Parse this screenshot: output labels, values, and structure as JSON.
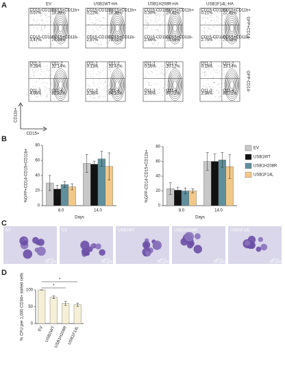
{
  "panel_letters": [
    "A",
    "B",
    "C",
    "D"
  ],
  "flow": {
    "columns": [
      "EV",
      "USB1WT-HA",
      "USB1H208R-HA",
      "USB1F14L-HA"
    ],
    "rows": [
      "GFP+CD14-",
      "GFP-CD14-"
    ],
    "y_axis": "CD11b+",
    "x_axis": "CD15+",
    "plots": [
      [
        [
          {
            "gate": "CD15-CD11b+",
            "pct": "0.07%"
          },
          {
            "gate": "CD15+CD11b+",
            "pct": "18.99%"
          },
          {
            "gate": "CD15-CD11b-",
            "pct": "3.47%"
          },
          {
            "gate": "CD15+CD11b-",
            "pct": "76.94%"
          }
        ],
        [
          {
            "gate": "CD15-CD11b+",
            "pct": "0.22%"
          },
          {
            "gate": "CD15+CD11b+",
            "pct": "18.38%"
          },
          {
            "gate": "CD15-CD11b-",
            "pct": "2.87%"
          },
          {
            "gate": "CD15+CD11b-",
            "pct": "78.51%"
          }
        ],
        [
          {
            "gate": "CD15-CD11b+",
            "pct": "0.30%"
          },
          {
            "gate": "CD15+CD11b+",
            "pct": "29.42%"
          },
          {
            "gate": "CD15-CD11b-",
            "pct": "2.66%"
          },
          {
            "gate": "CD15+CD11b-",
            "pct": "70.56%"
          }
        ],
        [
          {
            "gate": "CD15-CD11b+",
            "pct": "0.21%"
          },
          {
            "gate": "CD15+CD11b+",
            "pct": "22.45%"
          },
          {
            "gate": "CD15-CD11b-",
            "pct": "2.75%"
          },
          {
            "gate": "CD15+CD11b-",
            "pct": "74.58%"
          }
        ]
      ],
      [
        [
          {
            "gate": "Q11-1",
            "pct": "0.28%"
          },
          {
            "gate": "Q11-2",
            "pct": "12.14%"
          },
          {
            "gate": "Q11-3",
            "pct": "4.96%"
          },
          {
            "gate": "Q11-4",
            "pct": "82.62%"
          }
        ],
        [
          {
            "gate": "Q11-1",
            "pct": "0.13%"
          },
          {
            "gate": "Q11-2",
            "pct": "13.41%"
          },
          {
            "gate": "Q11-3",
            "pct": "2.36%"
          },
          {
            "gate": "Q11-4",
            "pct": "84.10%"
          }
        ],
        [
          {
            "gate": "Q11-1",
            "pct": "0.16%"
          },
          {
            "gate": "Q11-2",
            "pct": "10.12%"
          },
          {
            "gate": "Q11-3",
            "pct": "2.00%"
          },
          {
            "gate": "Q11-4",
            "pct": "87.72%"
          }
        ],
        [
          {
            "gate": "Q11-1",
            "pct": "0.19%"
          },
          {
            "gate": "Q11-2",
            "pct": "13.14%"
          },
          {
            "gate": "Q11-3",
            "pct": "2.96%"
          },
          {
            "gate": "Q11-4",
            "pct": "83.71%"
          }
        ]
      ]
    ]
  },
  "micrographs": {
    "labels": [
      "NT",
      "EV",
      "USB1WT",
      "USB1H208R",
      "USB1F14L"
    ],
    "scale": "50 µm"
  },
  "chart_data": [
    {
      "type": "bar",
      "y_label": "%GFP+CD14-CD15+CD11b+",
      "x_label": "Days",
      "categories": [
        "8.0",
        "14.0"
      ],
      "series": [
        {
          "color": "#c8c8c8",
          "values": [
            30,
            56
          ],
          "errors": [
            10,
            12
          ]
        },
        {
          "color": "#111111",
          "values": [
            22,
            55
          ],
          "errors": [
            5,
            4
          ]
        },
        {
          "color": "#5f8f9c",
          "values": [
            28,
            62
          ],
          "errors": [
            4,
            10
          ]
        },
        {
          "color": "#f2c889",
          "values": [
            25,
            52
          ],
          "errors": [
            4,
            18
          ]
        }
      ],
      "ylim": [
        0,
        80
      ],
      "yticks": [
        0,
        20,
        40,
        60,
        80
      ]
    },
    {
      "type": "bar",
      "y_label": "%GFP-CD14-CD15+CD11b+",
      "x_label": "Days",
      "categories": [
        "8.0",
        "14.0"
      ],
      "series": [
        {
          "name": "EV",
          "color": "#c8c8c8",
          "values": [
            23,
            60
          ],
          "errors": [
            8,
            12
          ]
        },
        {
          "name": "USB1WT",
          "color": "#111111",
          "values": [
            21,
            60
          ],
          "errors": [
            4,
            10
          ]
        },
        {
          "name": "USB1H208R",
          "color": "#5f8f9c",
          "values": [
            20,
            62
          ],
          "errors": [
            4,
            10
          ]
        },
        {
          "name": "USB1F14L",
          "color": "#f2c889",
          "values": [
            20,
            53
          ],
          "errors": [
            3,
            16
          ]
        }
      ],
      "ylim": [
        0,
        80
      ],
      "yticks": [
        0,
        20,
        40,
        60,
        80
      ],
      "legend": "right"
    },
    {
      "type": "bar",
      "y_label": "% CFU per 1,000 CD34+ sorted cells",
      "categories": [
        "EV",
        "USB1WT",
        "USB1H208R",
        "USB1F14L"
      ],
      "values": [
        100,
        78,
        60,
        56
      ],
      "errors": [
        0,
        4,
        6,
        5
      ],
      "color": "#f4efd6",
      "ylim": [
        0,
        100
      ],
      "yticks": [
        0,
        50,
        100
      ],
      "annotations": [
        {
          "text": "*",
          "from": 0,
          "to": 3
        },
        {
          "text": "*",
          "from": 0,
          "to": 2
        }
      ]
    }
  ]
}
